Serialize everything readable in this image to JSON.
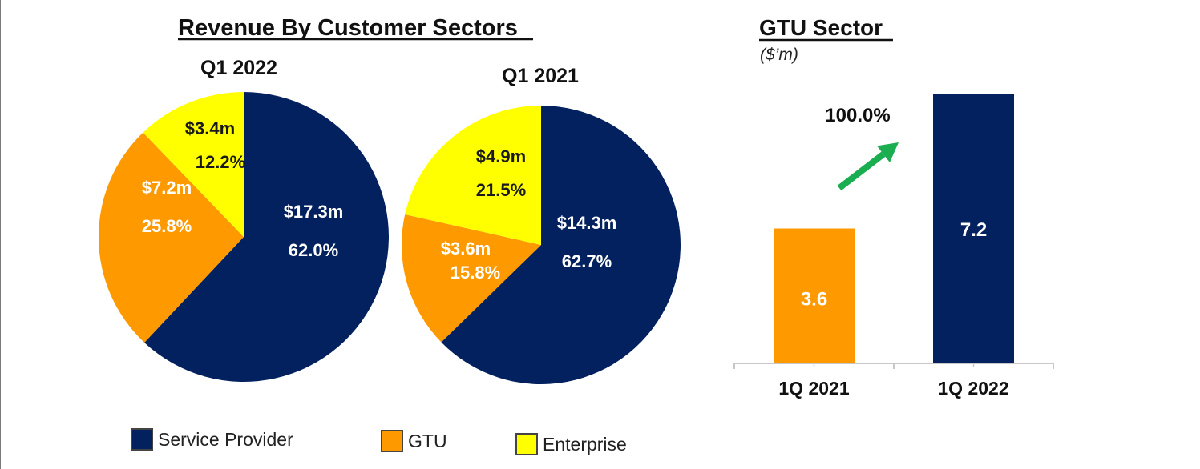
{
  "colors": {
    "service_provider": "#03215e",
    "gtu": "#ff9900",
    "enterprise": "#ffff00",
    "arrow": "#1aae50",
    "axis": "#c8c8c8",
    "text_dark": "#111111",
    "text_light": "#ffffff"
  },
  "left_section": {
    "title": "Revenue By Customer Sectors"
  },
  "right_section": {
    "title": "GTU Sector",
    "subtitle": "($’m)",
    "growth_label": "100.0%",
    "growth_icon": "up-right-arrow-icon"
  },
  "legend": [
    {
      "label": "Service Provider",
      "key": "service_provider"
    },
    {
      "label": "GTU",
      "key": "gtu"
    },
    {
      "label": "Enterprise",
      "key": "enterprise"
    }
  ],
  "chart_data": [
    {
      "type": "pie",
      "title": "Q1 2022",
      "start": "12 o'clock, clockwise",
      "slices": [
        {
          "name": "Service Provider",
          "key": "service_provider",
          "value": 17.3,
          "percent": 62.0,
          "value_label": "$17.3m",
          "percent_label": "62.0%"
        },
        {
          "name": "GTU",
          "key": "gtu",
          "value": 7.2,
          "percent": 25.8,
          "value_label": "$7.2m",
          "percent_label": "25.8%"
        },
        {
          "name": "Enterprise",
          "key": "enterprise",
          "value": 3.4,
          "percent": 12.2,
          "value_label": "$3.4m",
          "percent_label": "12.2%"
        }
      ]
    },
    {
      "type": "pie",
      "title": "Q1 2021",
      "start": "12 o'clock, clockwise",
      "slices": [
        {
          "name": "Service Provider",
          "key": "service_provider",
          "value": 14.3,
          "percent": 62.7,
          "value_label": "$14.3m",
          "percent_label": "62.7%"
        },
        {
          "name": "GTU",
          "key": "gtu",
          "value": 3.6,
          "percent": 15.8,
          "value_label": "$3.6m",
          "percent_label": "15.8%"
        },
        {
          "name": "Enterprise",
          "key": "enterprise",
          "value": 4.9,
          "percent": 21.5,
          "value_label": "$4.9m",
          "percent_label": "21.5%"
        }
      ]
    },
    {
      "type": "bar",
      "title": "GTU Sector",
      "ylabel": "($’m)",
      "categories": [
        "1Q 2021",
        "1Q 2022"
      ],
      "values": [
        3.6,
        7.2
      ],
      "value_labels": [
        "3.6",
        "7.2"
      ],
      "bar_keys": [
        "gtu",
        "service_provider"
      ],
      "ylim": [
        0,
        7.2
      ],
      "annotation": "100.0%",
      "grid": false,
      "legend": "none"
    }
  ]
}
